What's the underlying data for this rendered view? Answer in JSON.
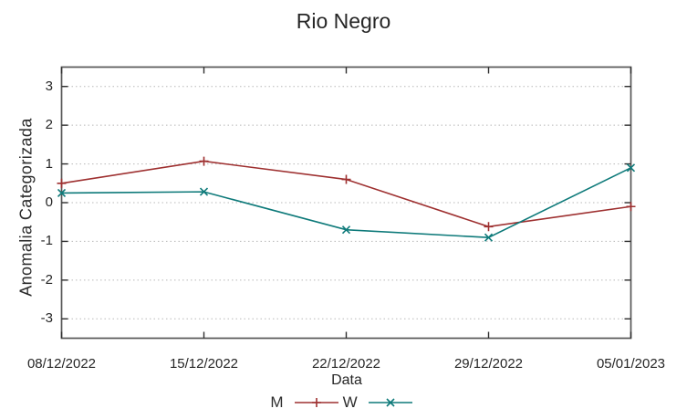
{
  "chart_data": {
    "type": "line",
    "title": "Rio Negro",
    "xlabel": "Data",
    "ylabel": "Anomalia Categorizada",
    "categories": [
      "08/12/2022",
      "15/12/2022",
      "22/12/2022",
      "29/12/2022",
      "05/01/2023"
    ],
    "series": [
      {
        "name": "M",
        "color": "#9e3030",
        "marker": "plus",
        "values": [
          0.5,
          1.07,
          0.6,
          -0.62,
          -0.1
        ]
      },
      {
        "name": "W",
        "color": "#0e7a7a",
        "marker": "cross",
        "values": [
          0.25,
          0.28,
          -0.7,
          -0.9,
          0.9
        ]
      }
    ],
    "ylim": [
      -3.5,
      3.5
    ],
    "y_ticks": [
      3,
      2,
      1,
      0,
      -1,
      -2,
      -3
    ],
    "grid": true,
    "grid_style": "dotted",
    "legend_position": "bottom-center"
  }
}
